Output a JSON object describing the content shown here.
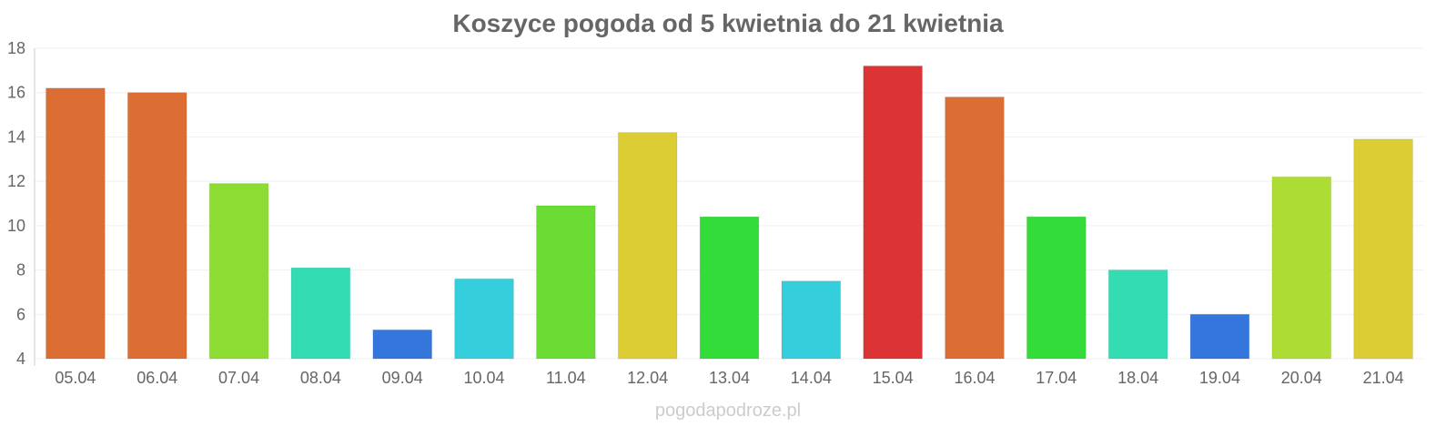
{
  "chart_data": {
    "type": "bar",
    "title": "Koszyce pogoda od 5 kwietnia do 21 kwietnia",
    "xlabel": "",
    "ylabel": "",
    "ylim": [
      4,
      18
    ],
    "yticks": [
      4,
      6,
      8,
      10,
      12,
      14,
      16,
      18
    ],
    "grid": true,
    "categories": [
      "05.04",
      "06.04",
      "07.04",
      "08.04",
      "09.04",
      "10.04",
      "11.04",
      "12.04",
      "13.04",
      "14.04",
      "15.04",
      "16.04",
      "17.04",
      "18.04",
      "19.04",
      "20.04",
      "21.04"
    ],
    "values": [
      16.2,
      16.0,
      11.9,
      8.1,
      5.3,
      7.6,
      10.9,
      14.2,
      10.4,
      7.5,
      17.2,
      15.8,
      10.4,
      8.0,
      6.0,
      12.2,
      13.9
    ],
    "colors": [
      "#dc6e34",
      "#dc6e34",
      "#8cdc34",
      "#34dcb4",
      "#3476dc",
      "#34cedc",
      "#6adc34",
      "#dccd34",
      "#34dc3a",
      "#34cedc",
      "#dc3434",
      "#dc6e34",
      "#34dc3a",
      "#34dcb4",
      "#3476dc",
      "#addc34",
      "#dccd34"
    ]
  },
  "footer": "pogodapodroze.pl"
}
